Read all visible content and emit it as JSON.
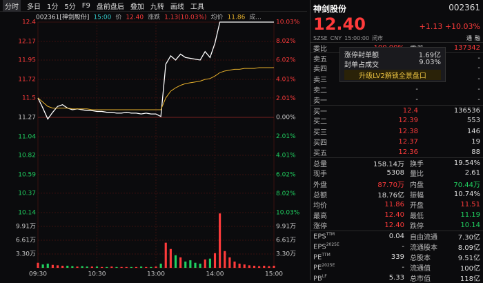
{
  "toolbar": [
    "分时",
    "多日",
    "1分",
    "5分",
    "F9",
    "盘前盘后",
    "叠加",
    "九转",
    "画线",
    "工具"
  ],
  "info": [
    "002361[神剑股份]",
    "15:00",
    "价",
    "12.40",
    "涨跌",
    "1.13(10.03%)",
    "均价",
    "11.86",
    "成..."
  ],
  "chart_data": {
    "type": "line",
    "x": [
      "09:30",
      "09:35",
      "09:40",
      "09:45",
      "09:50",
      "09:55",
      "10:00",
      "10:05",
      "10:10",
      "10:15",
      "10:20",
      "10:25",
      "10:30",
      "10:35",
      "10:40",
      "10:45",
      "10:50",
      "10:55",
      "11:00",
      "11:05",
      "11:10",
      "11:15",
      "11:20",
      "11:25",
      "11:30",
      "13:05",
      "13:10",
      "13:15",
      "13:20",
      "13:25",
      "13:30",
      "13:35",
      "13:40",
      "13:45",
      "13:50",
      "13:55",
      "14:00",
      "14:05",
      "14:10",
      "14:15",
      "14:20",
      "14:25",
      "14:30",
      "14:35",
      "14:40",
      "14:45",
      "14:50",
      "14:55",
      "15:00"
    ],
    "xticks": [
      {
        "value": 0,
        "label": "09:30"
      },
      {
        "value": 12,
        "label": "10:30"
      },
      {
        "value": 24,
        "label": "13:00"
      },
      {
        "value": 36,
        "label": "14:00"
      },
      {
        "value": 48,
        "label": "15:00"
      }
    ],
    "series": [
      {
        "name": "价",
        "color": "#ffffff",
        "values": [
          11.5,
          11.38,
          11.25,
          11.33,
          11.4,
          11.42,
          11.38,
          11.36,
          11.37,
          11.36,
          11.35,
          11.35,
          11.34,
          11.34,
          11.33,
          11.33,
          11.32,
          11.32,
          11.33,
          11.32,
          11.32,
          11.31,
          11.32,
          11.31,
          11.31,
          11.28,
          11.9,
          12.0,
          11.95,
          12.02,
          11.98,
          11.97,
          11.96,
          11.95,
          12.05,
          11.98,
          12.15,
          12.4,
          12.4,
          12.4,
          12.4,
          12.4,
          12.4,
          12.4,
          12.4,
          12.4,
          12.4,
          12.4,
          12.4
        ]
      },
      {
        "name": "均价",
        "color": "#e8b22c",
        "values": [
          11.5,
          11.45,
          11.4,
          11.38,
          11.38,
          11.38,
          11.38,
          11.37,
          11.37,
          11.37,
          11.37,
          11.36,
          11.36,
          11.36,
          11.36,
          11.36,
          11.36,
          11.36,
          11.36,
          11.36,
          11.36,
          11.36,
          11.36,
          11.36,
          11.36,
          11.36,
          11.5,
          11.58,
          11.62,
          11.65,
          11.67,
          11.68,
          11.69,
          11.7,
          11.72,
          11.73,
          11.76,
          11.8,
          11.82,
          11.83,
          11.84,
          11.84,
          11.85,
          11.85,
          11.85,
          11.86,
          11.86,
          11.86,
          11.86
        ]
      }
    ],
    "ylim": [
      10.14,
      12.4
    ],
    "yticks": [
      12.4,
      12.17,
      11.95,
      11.72,
      11.5,
      11.27,
      11.04,
      10.82,
      10.59,
      10.37,
      10.14
    ],
    "y2lim": [
      -10.03,
      10.03
    ],
    "y2ticks": [
      {
        "value": 10.03,
        "label": "10.03%"
      },
      {
        "value": 8.02,
        "label": "8.02%"
      },
      {
        "value": 6.02,
        "label": "6.02%"
      },
      {
        "value": 4.01,
        "label": "4.01%"
      },
      {
        "value": 2.01,
        "label": "2.01%"
      },
      {
        "value": 0,
        "label": "0.00%"
      },
      {
        "value": -2.01,
        "label": "2.01%"
      },
      {
        "value": -4.01,
        "label": "4.01%"
      },
      {
        "value": -6.02,
        "label": "6.02%"
      },
      {
        "value": -8.02,
        "label": "8.02%"
      },
      {
        "value": -10.03,
        "label": "10.03%"
      }
    ],
    "volume": {
      "values": [
        1.2,
        0.8,
        1.0,
        0.7,
        0.6,
        0.5,
        0.5,
        0.4,
        0.3,
        0.4,
        0.3,
        0.3,
        0.3,
        0.2,
        0.2,
        0.3,
        0.2,
        0.2,
        0.2,
        0.2,
        0.2,
        0.3,
        0.2,
        0.2,
        0.3,
        1.0,
        6.0,
        4.5,
        3.0,
        2.5,
        1.5,
        1.8,
        1.2,
        1.0,
        2.0,
        2.2,
        3.5,
        13.0,
        4.0,
        2.5,
        1.5,
        1.0,
        0.8,
        0.6,
        0.5,
        0.4,
        0.5,
        0.4,
        0.5
      ],
      "ylim": [
        0,
        13.2
      ],
      "yticks": [
        {
          "value": 9.91,
          "label": "9.91万"
        },
        {
          "value": 6.61,
          "label": "6.61万"
        },
        {
          "value": 3.3,
          "label": "3.30万"
        }
      ]
    }
  },
  "quote": {
    "name": "神剑股份",
    "code": "002361",
    "price": "12.40",
    "change": "+1.13",
    "change_pct": "+10.03%",
    "exchange": "SZSE",
    "currency": "CNY",
    "time": "15:00:00",
    "status": "闭市",
    "tags": [
      "通",
      "融"
    ]
  },
  "order_ratio": [
    "委比",
    "100.00%",
    "委差",
    "137342"
  ],
  "asks": [
    [
      "卖五",
      "-",
      "-"
    ],
    [
      "卖四",
      "-",
      "-"
    ],
    [
      "卖三",
      "-",
      "-"
    ],
    [
      "卖二",
      "-",
      "-"
    ],
    [
      "卖一",
      "-",
      "-"
    ]
  ],
  "popup": {
    "rows": [
      [
        "涨停封单额",
        "1.69亿"
      ],
      [
        "封单占成交",
        "9.03%"
      ]
    ],
    "cta": "升级LV2解锁全景盘口"
  },
  "bids": [
    [
      "买一",
      12.4,
      136536
    ],
    [
      "买二",
      12.39,
      553
    ],
    [
      "买三",
      12.38,
      146
    ],
    [
      "买四",
      12.37,
      19
    ],
    [
      "买五",
      12.36,
      88
    ]
  ],
  "stats": [
    [
      "总量",
      "158.14万",
      "换手",
      "19.54%"
    ],
    [
      "现手",
      "5308",
      "量比",
      "2.61"
    ],
    [
      "外盘",
      "87.70万",
      "内盘",
      "70.44万"
    ],
    [
      "总额",
      "18.76亿",
      "振幅",
      "10.74%"
    ],
    [
      "均价",
      "11.86",
      "开盘",
      "11.51"
    ],
    [
      "最高",
      "12.40",
      "最低",
      "11.19"
    ],
    [
      "涨停",
      "12.40",
      "跌停",
      "10.14"
    ]
  ],
  "fundamentals": [
    [
      "EPS",
      "TTM",
      "0.04",
      "自由流通",
      "7.30亿"
    ],
    [
      "EPS",
      "2025E",
      "-",
      "流通股本",
      "8.09亿"
    ],
    [
      "PE",
      "TTM",
      "339",
      "总股本",
      "9.51亿"
    ],
    [
      "PE",
      "2025E",
      "-",
      "流通值",
      "100亿"
    ],
    [
      "PB",
      "LF",
      "5.33",
      "总市值",
      "118亿"
    ]
  ]
}
